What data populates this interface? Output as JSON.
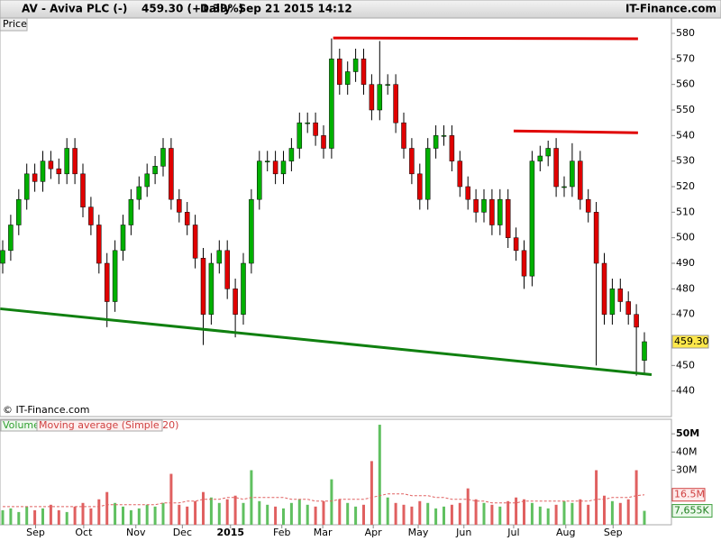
{
  "header": {
    "symbol": "AV - Aviva PLC (-)",
    "quote": "459.30 (+1.39%)",
    "period": "Daily  Sep 21 2015 14:12",
    "brand": "IT-Finance.com"
  },
  "chart_data": [
    {
      "type": "candlestick",
      "panel_label": "Price",
      "copyright": "© IT-Finance.com",
      "up_color": "#00b000",
      "down_color": "#e00000",
      "xlim": [
        0,
        80
      ],
      "xticks": [
        {
          "value": 4.1,
          "label": "Sep"
        },
        {
          "value": 10.1,
          "label": "Oct"
        },
        {
          "value": 16.6,
          "label": "Nov"
        },
        {
          "value": 22.4,
          "label": "Dec"
        },
        {
          "value": 28.4,
          "label": "2015"
        },
        {
          "value": 34.8,
          "label": "Feb"
        },
        {
          "value": 39.9,
          "label": "Mar"
        },
        {
          "value": 46.2,
          "label": "Apr"
        },
        {
          "value": 51.8,
          "label": "May"
        },
        {
          "value": 57.5,
          "label": "Jun"
        },
        {
          "value": 63.7,
          "label": "Jul"
        },
        {
          "value": 70.2,
          "label": "Aug"
        },
        {
          "value": 76.1,
          "label": "Sep"
        }
      ],
      "ylim": [
        430,
        586
      ],
      "yticks": [
        440,
        450,
        460,
        470,
        480,
        490,
        500,
        510,
        520,
        530,
        540,
        550,
        560,
        570,
        580
      ],
      "last_price_label": "459.30",
      "open": [
        490,
        495,
        505,
        515,
        525,
        522,
        530,
        527,
        525,
        535,
        525,
        512,
        505,
        490,
        475,
        495,
        505,
        515,
        520,
        525,
        528,
        535,
        515,
        510,
        505,
        492,
        470,
        490,
        495,
        480,
        470,
        490,
        515,
        530,
        530,
        525,
        530,
        535,
        545,
        545,
        540,
        535,
        570,
        560,
        565,
        570,
        560,
        550,
        560,
        560,
        545,
        535,
        525,
        515,
        535,
        540,
        540,
        530,
        520,
        515,
        510,
        515,
        505,
        515,
        500,
        495,
        485,
        530,
        532,
        535,
        520,
        520,
        530,
        515,
        510,
        490,
        470,
        480,
        475,
        470,
        452
      ],
      "high": [
        499,
        509,
        519,
        529,
        529,
        534,
        534,
        531,
        539,
        539,
        529,
        516,
        509,
        494,
        499,
        509,
        519,
        524,
        529,
        532,
        539,
        539,
        519,
        514,
        509,
        496,
        494,
        499,
        499,
        484,
        494,
        519,
        534,
        534,
        534,
        534,
        539,
        549,
        549,
        549,
        544,
        578,
        574,
        569,
        574,
        574,
        564,
        577,
        564,
        564,
        549,
        539,
        529,
        539,
        544,
        544,
        544,
        534,
        524,
        519,
        519,
        519,
        519,
        519,
        504,
        499,
        534,
        536,
        538,
        539,
        524,
        537,
        534,
        519,
        514,
        494,
        484,
        484,
        479,
        474,
        463
      ],
      "low": [
        486,
        491,
        501,
        511,
        518,
        518,
        523,
        521,
        521,
        521,
        508,
        501,
        486,
        465,
        471,
        491,
        501,
        511,
        516,
        521,
        524,
        511,
        506,
        501,
        488,
        458,
        466,
        486,
        476,
        461,
        466,
        486,
        511,
        526,
        521,
        521,
        526,
        531,
        541,
        536,
        531,
        531,
        556,
        556,
        561,
        556,
        546,
        546,
        556,
        541,
        531,
        521,
        511,
        511,
        531,
        536,
        526,
        516,
        511,
        506,
        506,
        501,
        501,
        496,
        491,
        480,
        481,
        526,
        528,
        516,
        516,
        516,
        511,
        506,
        450,
        466,
        466,
        471,
        466,
        446,
        447
      ],
      "close": [
        495,
        505,
        515,
        525,
        522,
        530,
        527,
        525,
        535,
        525,
        512,
        505,
        490,
        475,
        495,
        505,
        515,
        520,
        525,
        528,
        535,
        515,
        510,
        505,
        492,
        470,
        490,
        495,
        480,
        470,
        490,
        515,
        530,
        530,
        525,
        530,
        535,
        545,
        545,
        540,
        535,
        570,
        560,
        565,
        570,
        560,
        550,
        560,
        560,
        545,
        535,
        525,
        515,
        535,
        540,
        540,
        530,
        520,
        515,
        510,
        515,
        505,
        515,
        500,
        495,
        485,
        530,
        532,
        535,
        520,
        520,
        530,
        515,
        510,
        490,
        470,
        480,
        475,
        470,
        465,
        459.3
      ],
      "trend_lines": [
        {
          "color": "#e00000",
          "x": [
            41.2,
            79.2
          ],
          "y": [
            578.2,
            577.9
          ]
        },
        {
          "color": "#e00000",
          "x": [
            63.7,
            79.2
          ],
          "y": [
            541.8,
            541.1
          ]
        },
        {
          "color": "#108010",
          "x": [
            -0.3,
            80.9
          ],
          "y": [
            472.2,
            446.4
          ]
        }
      ]
    },
    {
      "type": "bar",
      "legend": [
        "Volume",
        "Moving average (Simple 20)"
      ],
      "ylim": [
        0,
        58
      ],
      "yticks": [
        {
          "value": 30,
          "label": "30M"
        },
        {
          "value": 40,
          "label": "40M"
        },
        {
          "value": 50,
          "label": "50M"
        }
      ],
      "ma_color": "#e06060",
      "ma_label": "16.5M",
      "volume_label": "7,655K",
      "volume": [
        8,
        9,
        7,
        10,
        8,
        9,
        11,
        8,
        7,
        10,
        12,
        9,
        14,
        18,
        12,
        10,
        8,
        9,
        11,
        10,
        12,
        28,
        11,
        10,
        13,
        18,
        15,
        12,
        14,
        16,
        12,
        30,
        13,
        11,
        10,
        9,
        12,
        14,
        11,
        10,
        13,
        25,
        14,
        12,
        10,
        11,
        35,
        55,
        15,
        12,
        11,
        10,
        13,
        12,
        9,
        10,
        11,
        12,
        20,
        14,
        12,
        11,
        10,
        13,
        15,
        14,
        12,
        10,
        9,
        11,
        13,
        12,
        14,
        11,
        30,
        16,
        13,
        12,
        14,
        30,
        7.655
      ],
      "moving_average": [
        10,
        10,
        10,
        10,
        10,
        10,
        10,
        10,
        10,
        10,
        10,
        10,
        10,
        11,
        11,
        11,
        11,
        11,
        11,
        11,
        12,
        12,
        12,
        13,
        13,
        14,
        14,
        14,
        15,
        15,
        14,
        15,
        15,
        15,
        15,
        15,
        14,
        14,
        14,
        13,
        13,
        13,
        14,
        14,
        14,
        14,
        15,
        16,
        17,
        17,
        17,
        16,
        16,
        16,
        15,
        15,
        14,
        14,
        14,
        13,
        13,
        12,
        12,
        12,
        12,
        13,
        13,
        13,
        13,
        13,
        13,
        13,
        13,
        13,
        14,
        14,
        15,
        15,
        15,
        16,
        16.5
      ]
    }
  ]
}
